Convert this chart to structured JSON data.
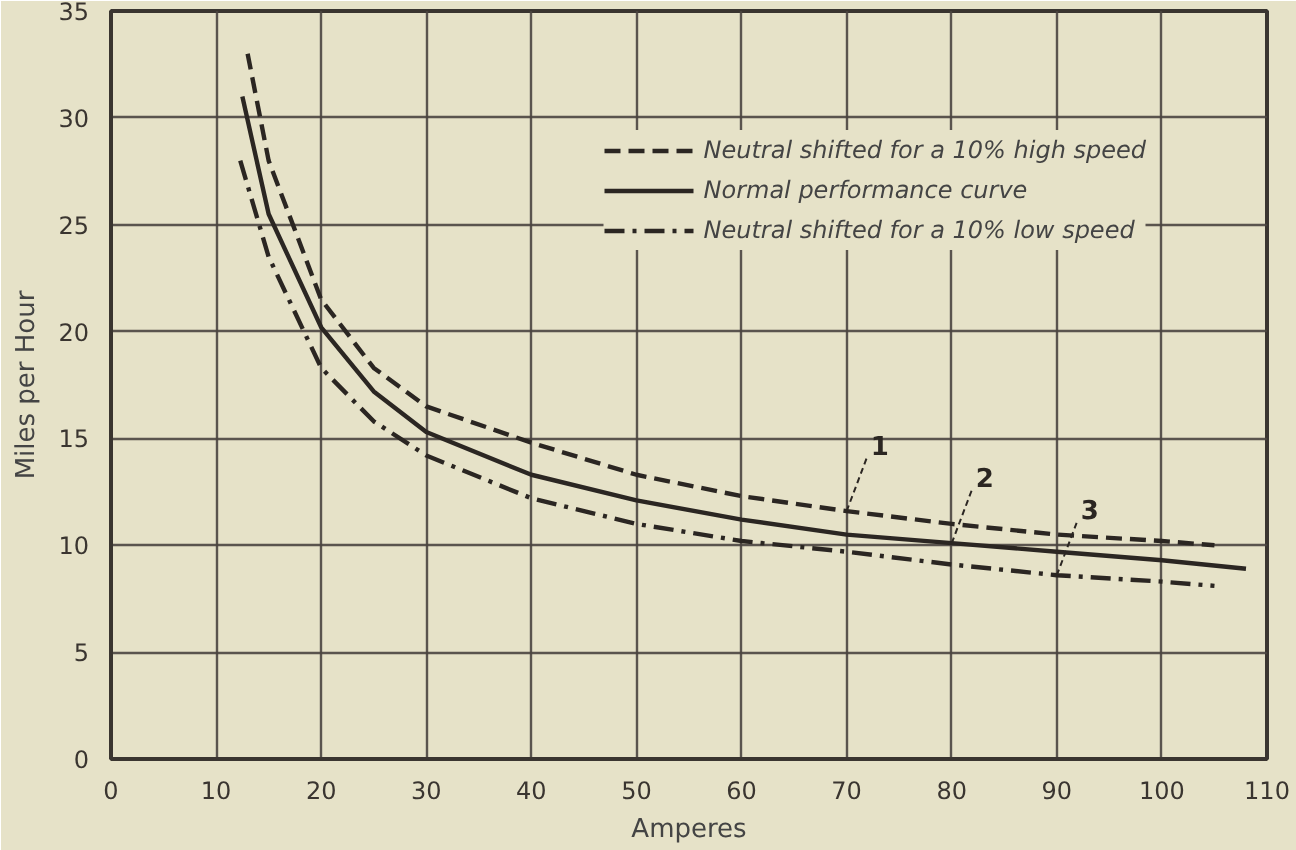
{
  "chart_data": {
    "type": "line",
    "xlabel": "Amperes",
    "ylabel": "Miles per Hour",
    "xlim": [
      0,
      110
    ],
    "ylim": [
      0,
      35
    ],
    "xticks": [
      0,
      10,
      20,
      30,
      40,
      50,
      60,
      70,
      80,
      90,
      100,
      110
    ],
    "yticks": [
      0,
      5,
      10,
      15,
      20,
      25,
      30,
      35
    ],
    "grid": true,
    "legend": "top right",
    "marker": "none",
    "series": [
      {
        "name": "Neutral shifted for a 10% high speed",
        "color": "#2b2622",
        "line_style": "dashed",
        "x": [
          13,
          15,
          20,
          25,
          30,
          40,
          50,
          60,
          70,
          80,
          90,
          100,
          105
        ],
        "values": [
          33,
          28,
          21.5,
          18.3,
          16.5,
          14.8,
          13.3,
          12.3,
          11.6,
          11,
          10.5,
          10.2,
          10
        ]
      },
      {
        "name": "Normal performance curve",
        "color": "#2b2622",
        "line_style": "solid",
        "x": [
          12.5,
          15,
          20,
          25,
          30,
          40,
          50,
          60,
          70,
          80,
          90,
          100,
          108
        ],
        "values": [
          31,
          25.5,
          20.2,
          17.2,
          15.3,
          13.3,
          12.1,
          11.2,
          10.5,
          10.1,
          9.7,
          9.3,
          8.9
        ]
      },
      {
        "name": "Neutral shifted for a 10% low speed",
        "color": "#2b2622",
        "line_style": "dashdot",
        "x": [
          12.3,
          15,
          20,
          25,
          30,
          40,
          50,
          60,
          70,
          80,
          90,
          100,
          105
        ],
        "values": [
          28,
          23.5,
          18.3,
          15.8,
          14.2,
          12.2,
          11,
          10.2,
          9.7,
          9.1,
          8.6,
          8.3,
          8.1
        ]
      }
    ],
    "annotations": [
      {
        "text": "1",
        "x": 70,
        "y": 11.6
      },
      {
        "text": "2",
        "x": 80,
        "y": 10.1
      },
      {
        "text": "3",
        "x": 90,
        "y": 8.6
      }
    ]
  }
}
